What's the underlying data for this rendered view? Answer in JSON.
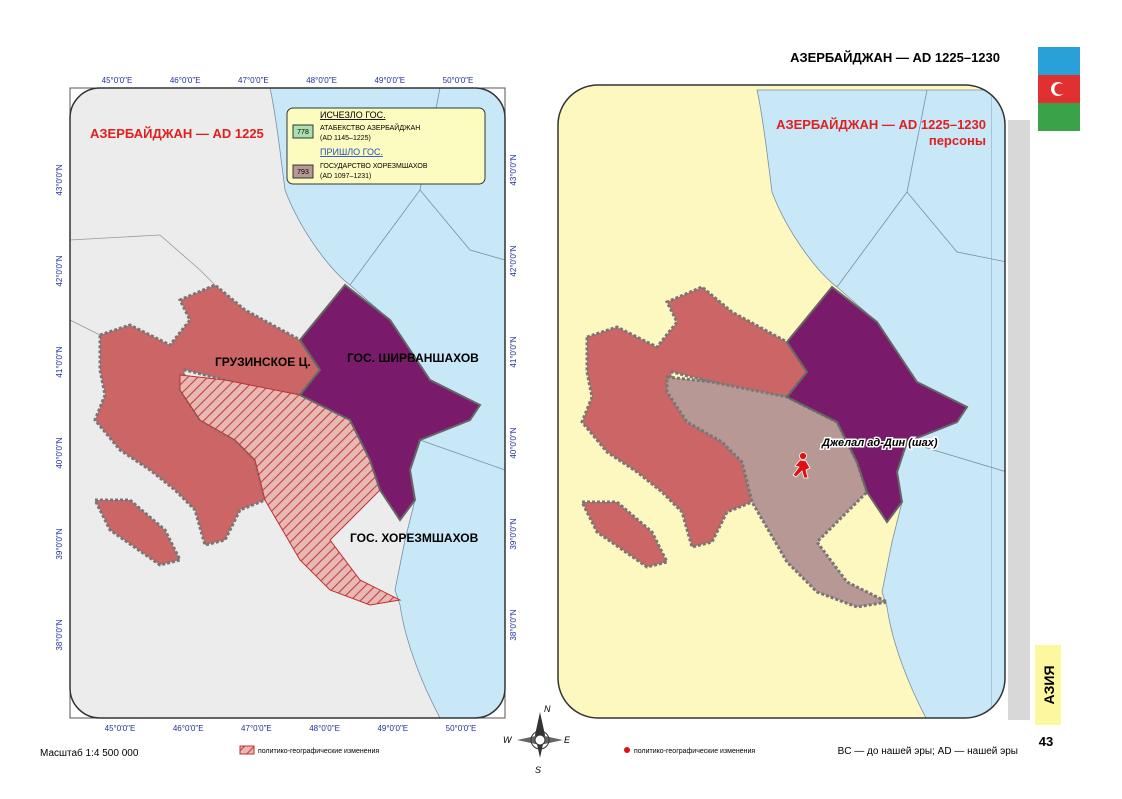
{
  "header": {
    "title": "АЗЕРБАЙДЖАН — AD 1225–1230",
    "section": "АЗИЯ",
    "page_number": "43"
  },
  "left_map": {
    "title": "АЗЕРБАЙДЖАН — AD 1225",
    "legend": {
      "disappeared_heading": "ИСЧЕЗЛО ГОС.",
      "disappeared_code": "778",
      "disappeared_name": "АТАБЕКСТВО АЗЕРБАЙДЖАН",
      "disappeared_dates": "(AD 1145–1225)",
      "appeared_heading": "ПРИШЛО ГОС.",
      "appeared_code": "793",
      "appeared_name": "ГОСУДАРСТВО ХОРЕЗМШАХОВ",
      "appeared_dates": "(AD 1097–1231)"
    },
    "labels": [
      "ГРУЗИНСКОЕ Ц.",
      "ГОС. ШИРВАНШАХОВ",
      "ГОС. ХОРЕЗМШАХОВ"
    ],
    "lon_labels": [
      "45°0'0\"E",
      "46°0'0\"E",
      "47°0'0\"E",
      "48°0'0\"E",
      "49°0'0\"E",
      "50°0'0\"E"
    ],
    "lat_labels": [
      "43°0'0\"N",
      "42°0'0\"N",
      "41°0'0\"N",
      "40°0'0\"N",
      "39°0'0\"N",
      "38°0'0\"N"
    ]
  },
  "right_map": {
    "title": "АЗЕРБАЙДЖАН — AD 1225–1230",
    "subtitle": "персоны",
    "person": "Джелал ад-Дин (шах)"
  },
  "compass": [
    "N",
    "E",
    "S",
    "W"
  ],
  "footer": {
    "scale": "Масштаб 1:4 500 000",
    "left_legend": "политико-географические изменения",
    "right_legend": "политико-географические изменения",
    "note": "BC — до нашей эры; AD — нашей эры"
  }
}
